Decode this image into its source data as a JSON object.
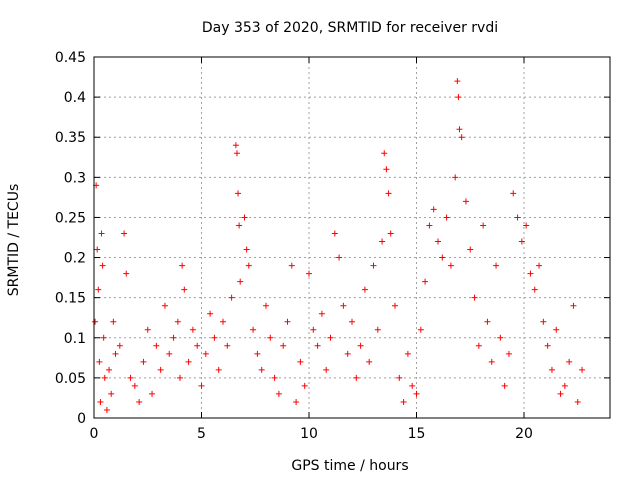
{
  "chart_data": {
    "type": "scatter",
    "title": "Day 353 of 2020, SRMTID for receiver rvdi",
    "xlabel": "GPS time / hours",
    "ylabel": "SRMTID / TECUs",
    "xlim": [
      0,
      24
    ],
    "ylim": [
      0,
      0.45
    ],
    "x_ticks": [
      "0",
      "5",
      "10",
      "15",
      "20"
    ],
    "y_ticks": [
      "0",
      "0.05",
      "0.1",
      "0.15",
      "0.2",
      "0.25",
      "0.3",
      "0.35",
      "0.4",
      "0.45"
    ],
    "grid": true,
    "marker": "+",
    "color": "#ff0000",
    "series": [
      {
        "x": [
          0.05,
          0.1,
          0.15,
          0.2,
          0.25,
          0.3,
          0.35,
          0.4,
          0.45,
          0.5,
          0.6,
          0.7,
          0.8,
          0.9,
          1.0,
          1.2,
          1.4,
          1.5,
          1.7,
          1.9,
          2.1,
          2.3,
          2.5,
          2.7,
          2.9,
          3.1,
          3.3,
          3.5,
          3.7,
          3.9,
          4.0,
          4.1,
          4.2,
          4.4,
          4.6,
          4.8,
          5.0,
          5.2,
          5.4,
          5.6,
          5.8,
          6.0,
          6.2,
          6.4,
          6.6,
          6.65,
          6.7,
          6.75,
          6.8,
          7.0,
          7.1,
          7.2,
          7.4,
          7.6,
          7.8,
          8.0,
          8.2,
          8.4,
          8.6,
          8.8,
          9.0,
          9.2,
          9.4,
          9.6,
          9.8,
          10.0,
          10.2,
          10.4,
          10.6,
          10.8,
          11.0,
          11.2,
          11.4,
          11.6,
          11.8,
          12.0,
          12.2,
          12.4,
          12.6,
          12.8,
          13.0,
          13.2,
          13.4,
          13.5,
          13.6,
          13.7,
          13.8,
          14.0,
          14.2,
          14.4,
          14.6,
          14.8,
          15.0,
          15.2,
          15.4,
          15.6,
          15.8,
          16.0,
          16.2,
          16.4,
          16.6,
          16.8,
          16.9,
          16.95,
          17.0,
          17.1,
          17.3,
          17.5,
          17.7,
          17.9,
          18.1,
          18.3,
          18.5,
          18.7,
          18.9,
          19.1,
          19.3,
          19.5,
          19.7,
          19.9,
          20.1,
          20.3,
          20.5,
          20.7,
          20.9,
          21.1,
          21.3,
          21.5,
          21.7,
          21.9,
          22.1,
          22.3,
          22.5,
          22.7
        ],
        "y": [
          0.12,
          0.29,
          0.21,
          0.16,
          0.07,
          0.02,
          0.23,
          0.19,
          0.1,
          0.05,
          0.01,
          0.06,
          0.03,
          0.12,
          0.08,
          0.09,
          0.23,
          0.18,
          0.05,
          0.04,
          0.02,
          0.07,
          0.11,
          0.03,
          0.09,
          0.06,
          0.14,
          0.08,
          0.1,
          0.12,
          0.05,
          0.19,
          0.16,
          0.07,
          0.11,
          0.09,
          0.04,
          0.08,
          0.13,
          0.1,
          0.06,
          0.12,
          0.09,
          0.15,
          0.34,
          0.33,
          0.28,
          0.24,
          0.17,
          0.25,
          0.21,
          0.19,
          0.11,
          0.08,
          0.06,
          0.14,
          0.1,
          0.05,
          0.03,
          0.09,
          0.12,
          0.19,
          0.02,
          0.07,
          0.04,
          0.18,
          0.11,
          0.09,
          0.13,
          0.06,
          0.1,
          0.23,
          0.2,
          0.14,
          0.08,
          0.12,
          0.05,
          0.09,
          0.16,
          0.07,
          0.19,
          0.11,
          0.22,
          0.33,
          0.31,
          0.28,
          0.23,
          0.14,
          0.05,
          0.02,
          0.08,
          0.04,
          0.03,
          0.11,
          0.17,
          0.24,
          0.26,
          0.22,
          0.2,
          0.25,
          0.19,
          0.3,
          0.42,
          0.4,
          0.36,
          0.35,
          0.27,
          0.21,
          0.15,
          0.09,
          0.24,
          0.12,
          0.07,
          0.19,
          0.1,
          0.04,
          0.08,
          0.28,
          0.25,
          0.22,
          0.24,
          0.18,
          0.16,
          0.19,
          0.12,
          0.09,
          0.06,
          0.11,
          0.03,
          0.04,
          0.07,
          0.14,
          0.02,
          0.06
        ]
      }
    ]
  }
}
